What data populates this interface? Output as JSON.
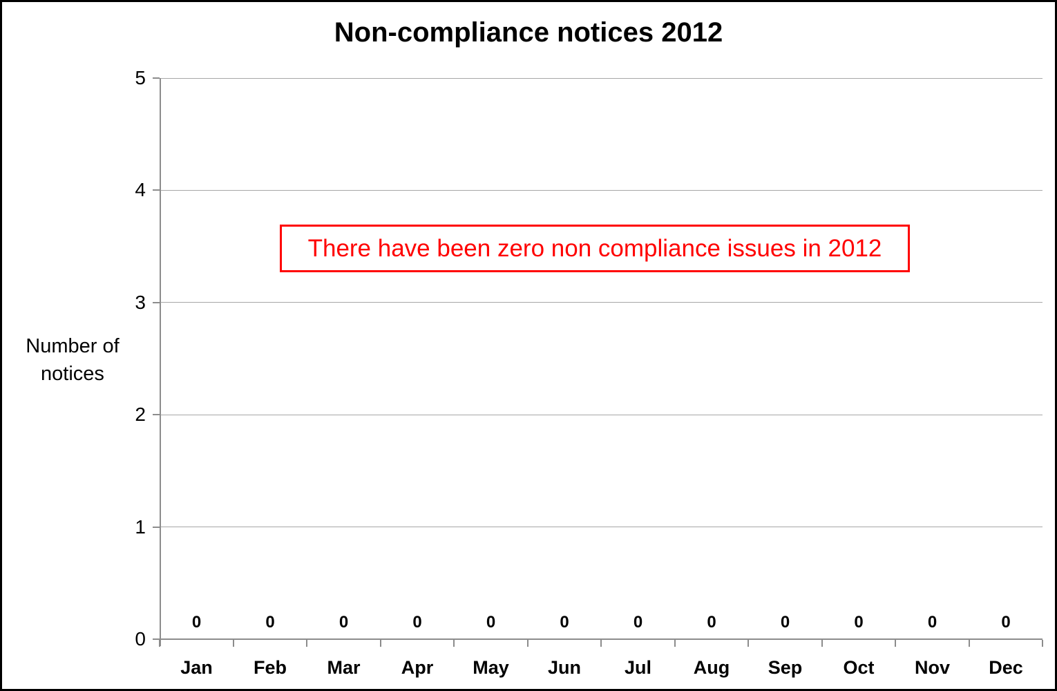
{
  "title": "Non-compliance notices 2012",
  "y_axis_title": {
    "line1": "Number of",
    "line2": "notices"
  },
  "annotation": {
    "text": "There have been zero non compliance issues in 2012",
    "color": "#FF0000"
  },
  "colors": {
    "gridline": "#A6A6A6",
    "axis": "#8C8C8C",
    "text": "#000000",
    "annotation_red": "#FF0000",
    "background": "#FFFFFF",
    "page_border": "#000000"
  },
  "chart_data": {
    "type": "bar",
    "title": "Non-compliance notices 2012",
    "categories": [
      "Jan",
      "Feb",
      "Mar",
      "Apr",
      "May",
      "Jun",
      "Jul",
      "Aug",
      "Sep",
      "Oct",
      "Nov",
      "Dec"
    ],
    "values": [
      0,
      0,
      0,
      0,
      0,
      0,
      0,
      0,
      0,
      0,
      0,
      0
    ],
    "data_labels": [
      "0",
      "0",
      "0",
      "0",
      "0",
      "0",
      "0",
      "0",
      "0",
      "0",
      "0",
      "0"
    ],
    "xlabel": "",
    "ylabel": "Number of notices",
    "ylim": [
      0,
      5
    ],
    "yticks": [
      0,
      1,
      2,
      3,
      4,
      5
    ],
    "ytick_labels": [
      "0",
      "1",
      "2",
      "3",
      "4",
      "5"
    ],
    "grid": true,
    "legend": false,
    "annotation": "There have been zero non compliance issues in 2012"
  }
}
